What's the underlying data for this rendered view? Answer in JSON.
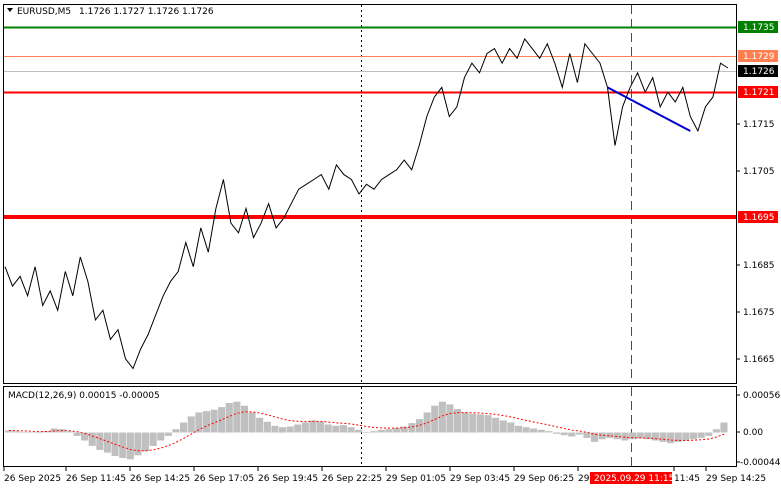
{
  "header": {
    "symbol_timeframe": "EURUSD,M5",
    "ohlc": "1.1726 1.1727 1.1726 1.1726"
  },
  "price_axis": {
    "ticks": [
      "1.1715",
      "1.1705",
      "1.1685",
      "1.1675",
      "1.1665"
    ]
  },
  "levels": {
    "resistance_top": {
      "label": "1.1735",
      "color": "#008000"
    },
    "upper_level": {
      "label": "1.1729",
      "color": "#ff7f50"
    },
    "current_price": {
      "label": "1.1726",
      "color": "#000000"
    },
    "mid_level": {
      "label": "1.1721",
      "color": "#ff0000"
    },
    "support": {
      "label": "1.1695",
      "color": "#ff0000"
    }
  },
  "macd": {
    "title": "MACD(12,26,9) 0.00015 -0.00005",
    "ticks": [
      "0.00056",
      "0.00",
      "-0.00044"
    ],
    "histogram_color": "#c0c0c0",
    "signal_color": "#ff0000"
  },
  "time_axis": {
    "labels": [
      "26 Sep 2025",
      "26 Sep 11:45",
      "26 Sep 14:25",
      "26 Sep 17:05",
      "26 Sep 19:45",
      "26 Sep 22:25",
      "29 Sep 01:05",
      "29 Sep 03:45",
      "29 Sep 06:25",
      "29 Sep",
      "11:45",
      "29 Sep 14:25"
    ],
    "highlight": "2025.09.29 11:15"
  },
  "chart_data": {
    "type": "line",
    "price_series": [
      1.1685,
      1.1681,
      1.1683,
      1.1679,
      1.1685,
      1.1677,
      1.168,
      1.1676,
      1.1684,
      1.1679,
      1.1687,
      1.1682,
      1.1674,
      1.1676,
      1.167,
      1.1672,
      1.1666,
      1.1664,
      1.1668,
      1.1671,
      1.1675,
      1.1679,
      1.1682,
      1.1684,
      1.169,
      1.1685,
      1.1693,
      1.1688,
      1.1697,
      1.1703,
      1.1694,
      1.1692,
      1.1697,
      1.1691,
      1.1694,
      1.1698,
      1.1693,
      1.1695,
      1.1698,
      1.1701,
      1.1702,
      1.1703,
      1.1704,
      1.1701,
      1.1706,
      1.1704,
      1.1703,
      1.17,
      1.1702,
      1.1701,
      1.1703,
      1.1704,
      1.1705,
      1.1707,
      1.1705,
      1.171,
      1.1716,
      1.172,
      1.1722,
      1.1716,
      1.1718,
      1.1724,
      1.1727,
      1.1725,
      1.1729,
      1.173,
      1.1727,
      1.173,
      1.1728,
      1.1732,
      1.173,
      1.1728,
      1.1731,
      1.1727,
      1.1722,
      1.1729,
      1.1723,
      1.1731,
      1.1729,
      1.1727,
      1.1722,
      1.171,
      1.1718,
      1.1722,
      1.1725,
      1.1721,
      1.1724,
      1.1718,
      1.1721,
      1.1719,
      1.1722,
      1.1716,
      1.1713,
      1.1718,
      1.172,
      1.1727,
      1.1726
    ],
    "trendline": {
      "from": 1.1722,
      "to": 1.1713,
      "color": "#0000cd"
    },
    "price_range": [
      1.1661,
      1.1739
    ],
    "macd_main": [
      3e-05,
      2e-05,
      1e-05,
      0.0,
      -1e-05,
      2e-05,
      6e-05,
      5e-05,
      2e-05,
      -5e-05,
      -0.00012,
      -0.0002,
      -0.00026,
      -0.0003,
      -0.00035,
      -0.00038,
      -0.0004,
      -0.00034,
      -0.00028,
      -0.0002,
      -0.00012,
      -5e-05,
      5e-05,
      0.00015,
      0.00024,
      0.0003,
      0.00032,
      0.00034,
      0.00038,
      0.00044,
      0.00046,
      0.0004,
      0.0003,
      0.00022,
      0.00016,
      0.0001,
      8e-05,
      9e-05,
      0.00012,
      0.00015,
      0.00018,
      0.00016,
      0.00012,
      0.0001,
      0.00011,
      8e-05,
      4e-05,
      1e-05,
      2e-05,
      4e-05,
      5e-05,
      7e-05,
      9e-05,
      0.00014,
      0.0002,
      0.0003,
      0.0004,
      0.00046,
      0.00042,
      0.00035,
      0.0003,
      0.00028,
      0.00027,
      0.00026,
      0.00022,
      0.00018,
      0.00015,
      0.0001,
      8e-05,
      6e-05,
      4e-05,
      2e-05,
      -2e-05,
      -4e-05,
      -6e-05,
      -3e-05,
      -8e-05,
      -0.00014,
      -0.0001,
      -8e-05,
      -0.0001,
      -0.00012,
      -0.0001,
      -9e-05,
      -0.0001,
      -0.00012,
      -0.00014,
      -0.00016,
      -0.00014,
      -0.00012,
      -0.0001,
      -8e-05,
      -5e-05,
      5e-05,
      0.00015
    ],
    "macd_range": [
      -0.00044,
      0.00056
    ]
  }
}
